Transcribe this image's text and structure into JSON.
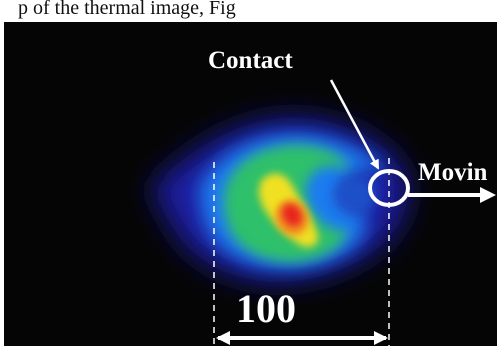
{
  "caption_fragment": "p of the thermal image, Fig",
  "labels": {
    "contact": "Contact",
    "moving": "Movin",
    "distance": "100"
  },
  "colors": {
    "background": "#050505",
    "frame": "#ffffff",
    "annotation": "#ffffff",
    "heat_low": "#1a1aa0",
    "heat_mid_low": "#1e7cf0",
    "heat_mid": "#2fc06a",
    "heat_high": "#f0e020",
    "heat_peak": "#e8201a"
  },
  "icons": {
    "contact_marker": "ellipse-marker-icon",
    "moving_arrow": "arrow-right-icon",
    "distance_arrow": "double-arrow-icon"
  }
}
